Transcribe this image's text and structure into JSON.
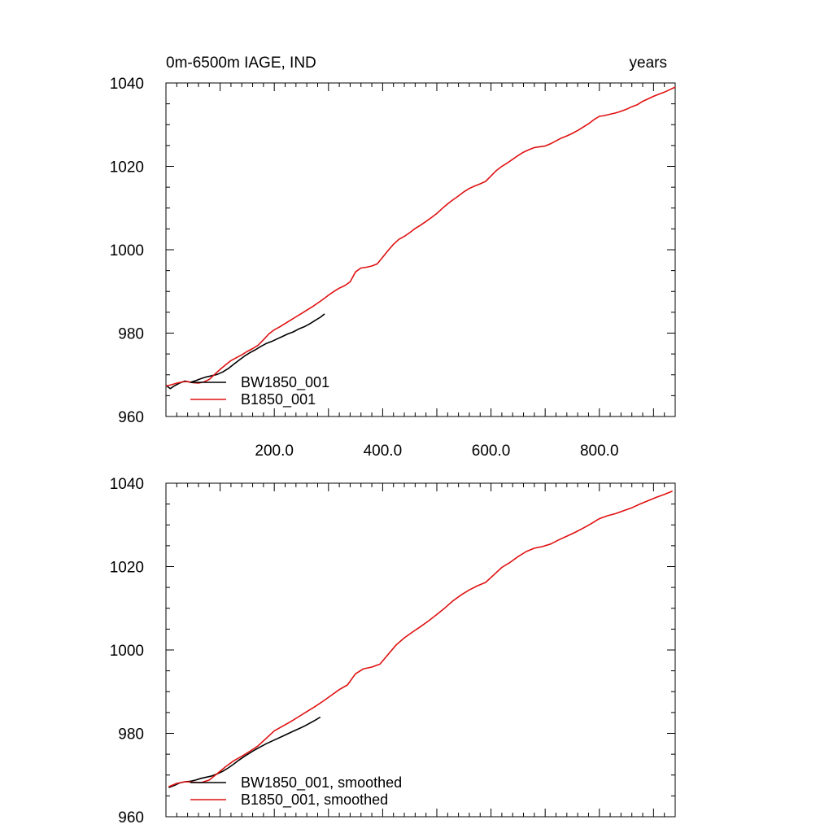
{
  "chart_data": [
    {
      "type": "line",
      "title": "0m-6500m IAGE, IND",
      "units": "years",
      "xlim": [
        0,
        940
      ],
      "ylim": [
        960,
        1040
      ],
      "yticks": [
        "960",
        "980",
        "1000",
        "1020",
        "1040"
      ],
      "xticks": [
        "200.0",
        "400.0",
        "600.0",
        "800.0"
      ],
      "grid": false,
      "legend_position": "bottom-left",
      "series": [
        {
          "name": "BW1850_001",
          "color": "#000000",
          "x": [
            0,
            8,
            15,
            25,
            35,
            45,
            55,
            65,
            75,
            85,
            95,
            105,
            115,
            125,
            135,
            145,
            155,
            165,
            175,
            185,
            195,
            205,
            215,
            225,
            235,
            245,
            255,
            265,
            275,
            285,
            293
          ],
          "y": [
            967.5,
            966.7,
            967.3,
            968.0,
            968.5,
            968.2,
            968.6,
            969.1,
            969.5,
            969.8,
            970.1,
            970.7,
            971.5,
            972.5,
            973.5,
            974.5,
            975.3,
            976.0,
            976.8,
            977.5,
            978.0,
            978.6,
            979.2,
            979.8,
            980.3,
            981.0,
            981.5,
            982.2,
            983.0,
            983.8,
            984.6
          ]
        },
        {
          "name": "B1850_001",
          "color": "#e01010",
          "x": [
            0,
            10,
            20,
            30,
            40,
            50,
            60,
            70,
            80,
            90,
            100,
            110,
            120,
            130,
            140,
            150,
            160,
            170,
            180,
            190,
            200,
            210,
            220,
            230,
            240,
            250,
            260,
            270,
            280,
            290,
            300,
            310,
            320,
            330,
            340,
            350,
            360,
            370,
            380,
            390,
            400,
            410,
            420,
            430,
            440,
            450,
            460,
            470,
            480,
            490,
            500,
            510,
            520,
            530,
            540,
            550,
            560,
            570,
            580,
            590,
            600,
            610,
            620,
            630,
            640,
            650,
            660,
            670,
            680,
            690,
            700,
            710,
            720,
            730,
            740,
            750,
            760,
            770,
            780,
            790,
            800,
            810,
            820,
            830,
            840,
            850,
            860,
            870,
            880,
            890,
            900,
            910,
            920,
            930,
            940
          ],
          "y": [
            967.3,
            967.6,
            968.0,
            968.3,
            968.4,
            968.1,
            968.0,
            968.3,
            968.9,
            970.1,
            971.3,
            972.4,
            973.4,
            974.1,
            974.8,
            975.6,
            976.3,
            977.1,
            978.4,
            979.8,
            980.8,
            981.5,
            982.3,
            983.1,
            983.9,
            984.7,
            985.5,
            986.3,
            987.2,
            988.1,
            989.1,
            990.0,
            990.8,
            991.4,
            992.3,
            994.7,
            995.6,
            995.8,
            996.1,
            996.6,
            998.2,
            999.8,
            1001.3,
            1002.5,
            1003.2,
            1004.1,
            1005.1,
            1005.9,
            1006.8,
            1007.7,
            1008.7,
            1009.9,
            1011.0,
            1012.0,
            1012.9,
            1013.9,
            1014.7,
            1015.3,
            1015.8,
            1016.4,
            1017.7,
            1019.0,
            1020.0,
            1020.8,
            1021.7,
            1022.6,
            1023.4,
            1024.0,
            1024.5,
            1024.7,
            1024.9,
            1025.4,
            1026.1,
            1026.8,
            1027.3,
            1027.9,
            1028.6,
            1029.4,
            1030.2,
            1031.2,
            1032.0,
            1032.2,
            1032.5,
            1032.8,
            1033.2,
            1033.7,
            1034.3,
            1034.8,
            1035.6,
            1036.2,
            1036.8,
            1037.3,
            1037.8,
            1038.4,
            1039.0
          ]
        }
      ]
    },
    {
      "type": "line",
      "title": "",
      "xlim": [
        0,
        940
      ],
      "ylim": [
        960,
        1040
      ],
      "yticks": [
        "960",
        "980",
        "1000",
        "1020",
        "1040"
      ],
      "grid": false,
      "legend_position": "bottom-left",
      "series": [
        {
          "name": "BW1850_001, smoothed",
          "color": "#000000",
          "x": [
            5,
            15,
            25,
            35,
            45,
            55,
            65,
            75,
            85,
            95,
            105,
            115,
            125,
            135,
            145,
            155,
            165,
            175,
            185,
            195,
            205,
            215,
            225,
            235,
            245,
            255,
            265,
            275,
            285
          ],
          "y": [
            967.0,
            967.5,
            968.1,
            968.4,
            968.5,
            968.8,
            969.2,
            969.5,
            969.8,
            970.3,
            970.9,
            971.7,
            972.6,
            973.6,
            974.5,
            975.3,
            976.1,
            976.8,
            977.5,
            978.1,
            978.7,
            979.3,
            979.9,
            980.5,
            981.1,
            981.7,
            982.4,
            983.1,
            983.9
          ]
        },
        {
          "name": "B1850_001, smoothed",
          "color": "#e01010",
          "x": [
            5,
            20,
            35,
            50,
            65,
            80,
            95,
            110,
            125,
            140,
            155,
            170,
            185,
            200,
            215,
            230,
            245,
            260,
            275,
            290,
            305,
            320,
            335,
            350,
            365,
            380,
            395,
            410,
            425,
            440,
            455,
            470,
            485,
            500,
            515,
            530,
            545,
            560,
            575,
            590,
            605,
            620,
            635,
            650,
            665,
            680,
            695,
            710,
            725,
            740,
            755,
            770,
            785,
            800,
            815,
            830,
            845,
            860,
            875,
            890,
            905,
            920,
            935
          ],
          "y": [
            967.2,
            968.0,
            968.4,
            968.3,
            968.2,
            968.8,
            970.4,
            972.0,
            973.4,
            974.5,
            975.7,
            977.0,
            978.8,
            980.6,
            981.7,
            982.8,
            984.0,
            985.2,
            986.4,
            987.7,
            989.1,
            990.5,
            991.6,
            994.3,
            995.5,
            995.9,
            996.6,
            998.9,
            1001.2,
            1002.9,
            1004.3,
            1005.6,
            1007.0,
            1008.5,
            1010.1,
            1011.8,
            1013.2,
            1014.4,
            1015.4,
            1016.2,
            1018.0,
            1019.8,
            1021.0,
            1022.4,
            1023.6,
            1024.4,
            1024.8,
            1025.4,
            1026.4,
            1027.3,
            1028.2,
            1029.2,
            1030.3,
            1031.5,
            1032.2,
            1032.7,
            1033.4,
            1034.1,
            1035.0,
            1035.8,
            1036.6,
            1037.3,
            1038.1
          ]
        }
      ]
    }
  ]
}
